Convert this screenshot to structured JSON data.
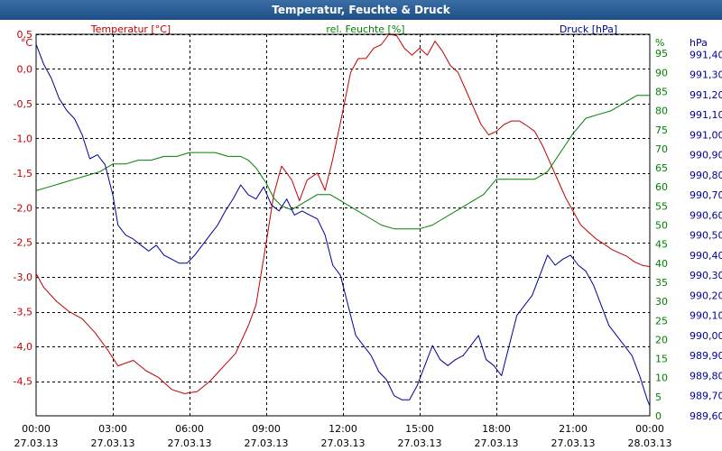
{
  "window": {
    "title": "Temperatur, Feuchte & Druck"
  },
  "chart_data": {
    "type": "line",
    "title": "Temperatur, Feuchte & Druck",
    "x_ticks": [
      {
        "time": "00:00",
        "date": "27.03.13"
      },
      {
        "time": "03:00",
        "date": "27.03.13"
      },
      {
        "time": "06:00",
        "date": "27.03.13"
      },
      {
        "time": "09:00",
        "date": "27.03.13"
      },
      {
        "time": "12:00",
        "date": "27.03.13"
      },
      {
        "time": "15:00",
        "date": "27.03.13"
      },
      {
        "time": "18:00",
        "date": "27.03.13"
      },
      {
        "time": "21:00",
        "date": "27.03.13"
      },
      {
        "time": "00:00",
        "date": "28.03.13"
      }
    ],
    "xlim_hours": [
      0,
      24
    ],
    "axes": {
      "temperature": {
        "unit": "°C",
        "ylim": [
          -5.0,
          0.5
        ],
        "ticks": [
          "0,5",
          "0,0",
          "-0,5",
          "-1,0",
          "-1,5",
          "-2,0",
          "-2,5",
          "-3,0",
          "-3,5",
          "-4,0",
          "-4,5"
        ],
        "tick_values": [
          0.5,
          0.0,
          -0.5,
          -1.0,
          -1.5,
          -2.0,
          -2.5,
          -3.0,
          -3.5,
          -4.0,
          -4.5
        ]
      },
      "humidity": {
        "unit": "%",
        "ylim": [
          0,
          100
        ],
        "ticks": [
          "95",
          "90",
          "85",
          "80",
          "75",
          "70",
          "65",
          "60",
          "55",
          "50",
          "45",
          "40",
          "35",
          "30",
          "25",
          "20",
          "15",
          "10",
          "5",
          "0"
        ],
        "tick_values": [
          95,
          90,
          85,
          80,
          75,
          70,
          65,
          60,
          55,
          50,
          45,
          40,
          35,
          30,
          25,
          20,
          15,
          10,
          5,
          0
        ]
      },
      "pressure": {
        "unit": "hPa",
        "ylim": [
          989.6,
          991.5
        ],
        "ticks": [
          "991,40",
          "991,30",
          "991,20",
          "991,10",
          "991,00",
          "990,90",
          "990,80",
          "990,70",
          "990,60",
          "990,50",
          "990,40",
          "990,30",
          "990,20",
          "990,10",
          "990,00",
          "989,90",
          "989,80",
          "989,70",
          "989,60"
        ],
        "tick_values": [
          991.4,
          991.3,
          991.2,
          991.1,
          991.0,
          990.9,
          990.8,
          990.7,
          990.6,
          990.5,
          990.4,
          990.3,
          990.2,
          990.1,
          990.0,
          989.9,
          989.8,
          989.7,
          989.6
        ]
      }
    },
    "series": [
      {
        "name": "Temperatur [°C]",
        "axis": "temperature",
        "color": "#c00000",
        "x": [
          0,
          0.3,
          0.8,
          1.3,
          1.8,
          2.3,
          2.8,
          3.2,
          3.8,
          4.3,
          4.8,
          5.3,
          5.8,
          6.3,
          6.8,
          7.3,
          7.8,
          8.3,
          8.6,
          9.0,
          9.3,
          9.6,
          10.0,
          10.3,
          10.6,
          11.0,
          11.3,
          11.6,
          12.0,
          12.3,
          12.6,
          12.9,
          13.2,
          13.5,
          13.8,
          14.1,
          14.4,
          14.7,
          15.0,
          15.3,
          15.6,
          15.9,
          16.2,
          16.5,
          16.8,
          17.1,
          17.4,
          17.7,
          18.0,
          18.3,
          18.6,
          18.9,
          19.2,
          19.5,
          19.8,
          20.1,
          20.4,
          20.7,
          21.0,
          21.3,
          21.6,
          21.9,
          22.2,
          22.5,
          22.8,
          23.1,
          23.4,
          23.7,
          24.0
        ],
        "y": [
          -2.95,
          -3.15,
          -3.35,
          -3.5,
          -3.6,
          -3.8,
          -4.05,
          -4.28,
          -4.2,
          -4.35,
          -4.45,
          -4.62,
          -4.68,
          -4.65,
          -4.5,
          -4.3,
          -4.1,
          -3.7,
          -3.4,
          -2.5,
          -1.8,
          -1.4,
          -1.6,
          -1.9,
          -1.6,
          -1.5,
          -1.75,
          -1.3,
          -0.6,
          -0.05,
          0.15,
          0.15,
          0.3,
          0.35,
          0.5,
          0.48,
          0.3,
          0.2,
          0.3,
          0.2,
          0.4,
          0.25,
          0.05,
          -0.05,
          -0.3,
          -0.55,
          -0.8,
          -0.95,
          -0.9,
          -0.8,
          -0.75,
          -0.75,
          -0.82,
          -0.9,
          -1.1,
          -1.35,
          -1.6,
          -1.85,
          -2.05,
          -2.25,
          -2.35,
          -2.45,
          -2.52,
          -2.6,
          -2.65,
          -2.7,
          -2.78,
          -2.83,
          -2.85
        ]
      },
      {
        "name": "rel. Feuchte [%]",
        "axis": "humidity",
        "color": "#008000",
        "x": [
          0,
          0.5,
          1.0,
          1.5,
          2.0,
          2.5,
          3.0,
          3.5,
          4.0,
          4.5,
          5.0,
          5.5,
          6.0,
          6.5,
          7.0,
          7.5,
          8.0,
          8.3,
          8.6,
          9.0,
          9.3,
          9.6,
          10.0,
          10.5,
          11.0,
          11.5,
          12.0,
          12.5,
          13.0,
          13.5,
          14.0,
          14.5,
          15.0,
          15.5,
          16.0,
          16.5,
          17.0,
          17.5,
          18.0,
          18.5,
          19.0,
          19.5,
          20.0,
          20.3,
          20.6,
          21.0,
          21.5,
          22.0,
          22.5,
          23.0,
          23.5,
          24.0
        ],
        "y": [
          59,
          60,
          61,
          62,
          63,
          64,
          66,
          66,
          67,
          67,
          68,
          68,
          69,
          69,
          69,
          68,
          68,
          67,
          65,
          61,
          57,
          55,
          54,
          56,
          58,
          58,
          56,
          54,
          52,
          50,
          49,
          49,
          49,
          50,
          52,
          54,
          56,
          58,
          62,
          62,
          62,
          62,
          64,
          67,
          70,
          74,
          78,
          79,
          80,
          82,
          84,
          84
        ]
      },
      {
        "name": "Druck [hPa]",
        "axis": "pressure",
        "color": "#000099",
        "x": [
          0,
          0.3,
          0.6,
          0.9,
          1.2,
          1.5,
          1.8,
          2.1,
          2.4,
          2.7,
          3.0,
          3.2,
          3.5,
          3.8,
          4.1,
          4.4,
          4.7,
          5.0,
          5.3,
          5.6,
          5.9,
          6.2,
          6.5,
          6.8,
          7.1,
          7.4,
          7.7,
          8.0,
          8.3,
          8.6,
          8.9,
          9.2,
          9.5,
          9.8,
          10.1,
          10.4,
          10.7,
          11.0,
          11.3,
          11.6,
          11.9,
          12.2,
          12.5,
          12.8,
          13.1,
          13.4,
          13.7,
          14.0,
          14.3,
          14.6,
          14.9,
          15.2,
          15.5,
          15.8,
          16.1,
          16.4,
          16.7,
          17.0,
          17.3,
          17.6,
          17.9,
          18.2,
          18.5,
          18.8,
          19.1,
          19.4,
          19.7,
          20.0,
          20.3,
          20.6,
          20.9,
          21.2,
          21.5,
          21.8,
          22.1,
          22.4,
          22.7,
          23.0,
          23.3,
          23.6,
          23.9,
          24.0
        ],
        "y": [
          991.45,
          991.35,
          991.28,
          991.18,
          991.12,
          991.08,
          991.0,
          990.88,
          990.9,
          990.85,
          990.7,
          990.55,
          990.5,
          990.48,
          990.45,
          990.42,
          990.45,
          990.4,
          990.38,
          990.36,
          990.36,
          990.4,
          990.45,
          990.5,
          990.55,
          990.62,
          990.68,
          990.75,
          990.7,
          990.68,
          990.74,
          990.65,
          990.62,
          990.68,
          990.6,
          990.62,
          990.6,
          990.58,
          990.5,
          990.35,
          990.3,
          990.15,
          990.0,
          989.95,
          989.9,
          989.82,
          989.78,
          989.7,
          989.68,
          989.68,
          989.75,
          989.85,
          989.95,
          989.88,
          989.85,
          989.88,
          989.9,
          989.95,
          990.0,
          989.88,
          989.85,
          989.8,
          989.95,
          990.1,
          990.15,
          990.2,
          990.3,
          990.4,
          990.35,
          990.38,
          990.4,
          990.35,
          990.32,
          990.25,
          990.15,
          990.05,
          990.0,
          989.95,
          989.9,
          989.8,
          989.68,
          989.65
        ]
      }
    ],
    "grid": true,
    "legend": [
      "Temperatur [°C]",
      "rel. Feuchte [%]",
      "Druck [hPa]"
    ]
  }
}
